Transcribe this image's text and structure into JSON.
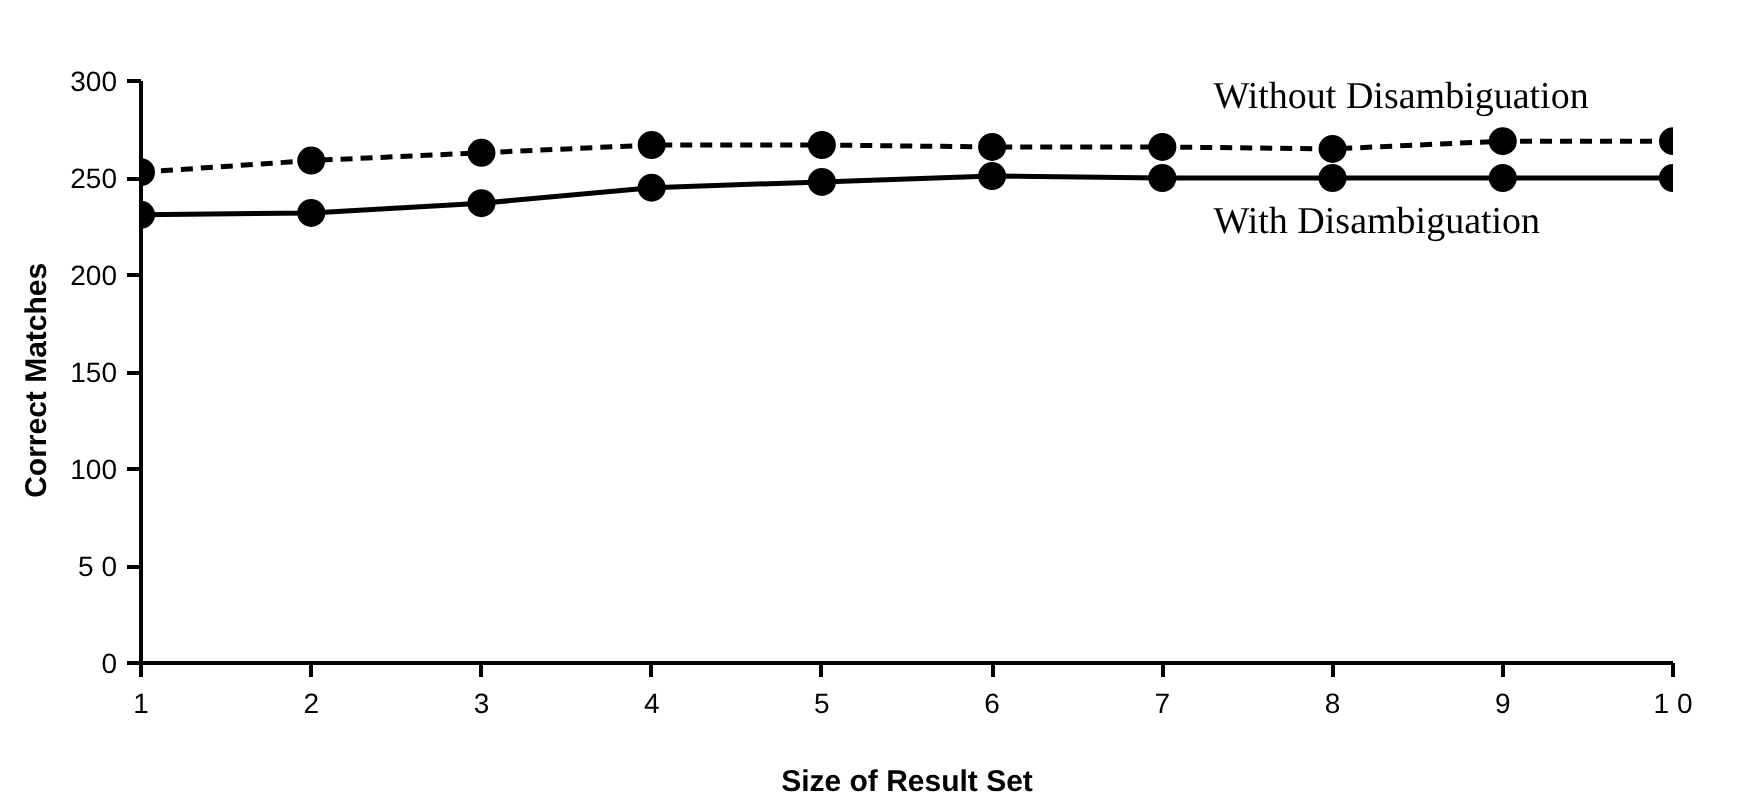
{
  "chart_data": {
    "type": "line",
    "xlabel": "Size of Result Set",
    "ylabel": "Correct   Matches",
    "x": [
      1,
      2,
      3,
      4,
      5,
      6,
      7,
      8,
      9,
      10
    ],
    "series": [
      {
        "name": "Without Disambiguation",
        "color": "#000000",
        "line_style": "dashed",
        "values": [
          253,
          259,
          263,
          267,
          267,
          266,
          266,
          265,
          269,
          269
        ]
      },
      {
        "name": "With Disambiguation",
        "color": "#000000",
        "line_style": "solid",
        "values": [
          231,
          232,
          237,
          245,
          248,
          251,
          250,
          250,
          250,
          250
        ]
      }
    ],
    "xlim": [
      1,
      10
    ],
    "xticks": [
      1,
      2,
      3,
      4,
      5,
      6,
      7,
      8,
      9,
      {
        "value": 10,
        "label": "1 0"
      }
    ],
    "ylim": [
      0,
      300
    ],
    "yticks": [
      0,
      {
        "value": 50,
        "label": "5 0"
      },
      100,
      150,
      200,
      250,
      300
    ],
    "grid": false,
    "marker": "circle"
  }
}
